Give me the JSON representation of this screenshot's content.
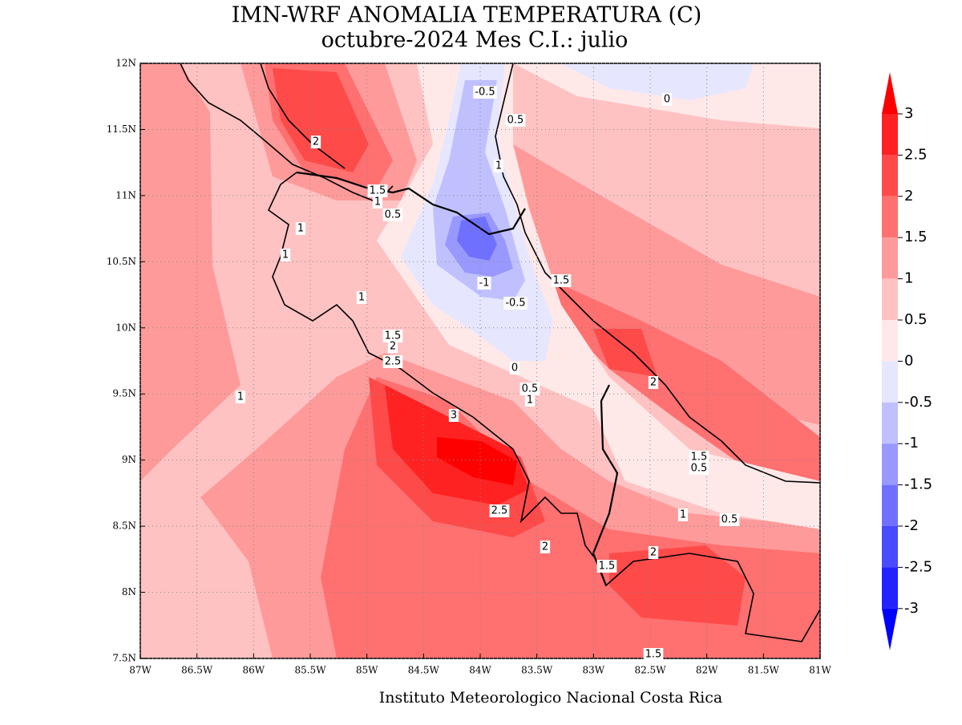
{
  "map": {
    "title": "IMN-WRF  ANOMALIA TEMPERATURA (C)",
    "subtitle": "octubre-2024 Mes C.I.: julio",
    "footer": "Instituto Meteorologico Nacional Costa Rica",
    "lonlim": [
      -87,
      -81
    ],
    "latlim": [
      7.5,
      12
    ],
    "lon_ticks": [
      {
        "value": -87,
        "label": "87W"
      },
      {
        "value": -86.5,
        "label": "86.5W"
      },
      {
        "value": -86,
        "label": "86W"
      },
      {
        "value": -85.5,
        "label": "85.5W"
      },
      {
        "value": -85,
        "label": "85W"
      },
      {
        "value": -84.5,
        "label": "84.5W"
      },
      {
        "value": -84,
        "label": "84W"
      },
      {
        "value": -83.5,
        "label": "83.5W"
      },
      {
        "value": -83,
        "label": "83W"
      },
      {
        "value": -82.5,
        "label": "82.5W"
      },
      {
        "value": -82,
        "label": "82W"
      },
      {
        "value": -81.5,
        "label": "81.5W"
      },
      {
        "value": -81,
        "label": "81W"
      }
    ],
    "lat_ticks": [
      {
        "value": 12,
        "label": "12N"
      },
      {
        "value": 11.5,
        "label": "11.5N"
      },
      {
        "value": 11,
        "label": "11N"
      },
      {
        "value": 10.5,
        "label": "10.5N"
      },
      {
        "value": 10,
        "label": "10N"
      },
      {
        "value": 9.5,
        "label": "9.5N"
      },
      {
        "value": 9,
        "label": "9N"
      },
      {
        "value": 8.5,
        "label": "8.5N"
      },
      {
        "value": 8,
        "label": "8N"
      },
      {
        "value": 7.5,
        "label": "7.5N"
      }
    ],
    "grid": true,
    "colorbar_levels": [
      3,
      2.5,
      2,
      1.5,
      1,
      0.5,
      0,
      -0.5,
      -1,
      -1.5,
      -2,
      -2.5,
      -3
    ],
    "colorbar_colors": [
      "#ff0000",
      "#ff2222",
      "#ff4a4a",
      "#ff7070",
      "#ff9a9a",
      "#ffc2c2",
      "#ffe8e8",
      "#e6e6ff",
      "#c0c0ff",
      "#9898ff",
      "#7070ff",
      "#4a4aff",
      "#2222ff",
      "#0000ff"
    ],
    "contour_labels": [
      -0.5,
      0,
      0.5,
      2,
      1,
      1.5,
      1,
      0.5,
      1,
      1,
      -1,
      1.5,
      -0.5,
      1,
      1.5,
      2,
      2.5,
      0,
      2,
      0.5,
      1,
      1,
      3,
      1.5,
      0.5,
      2.5,
      1,
      0.5,
      2,
      2,
      1.5,
      1.5
    ]
  }
}
